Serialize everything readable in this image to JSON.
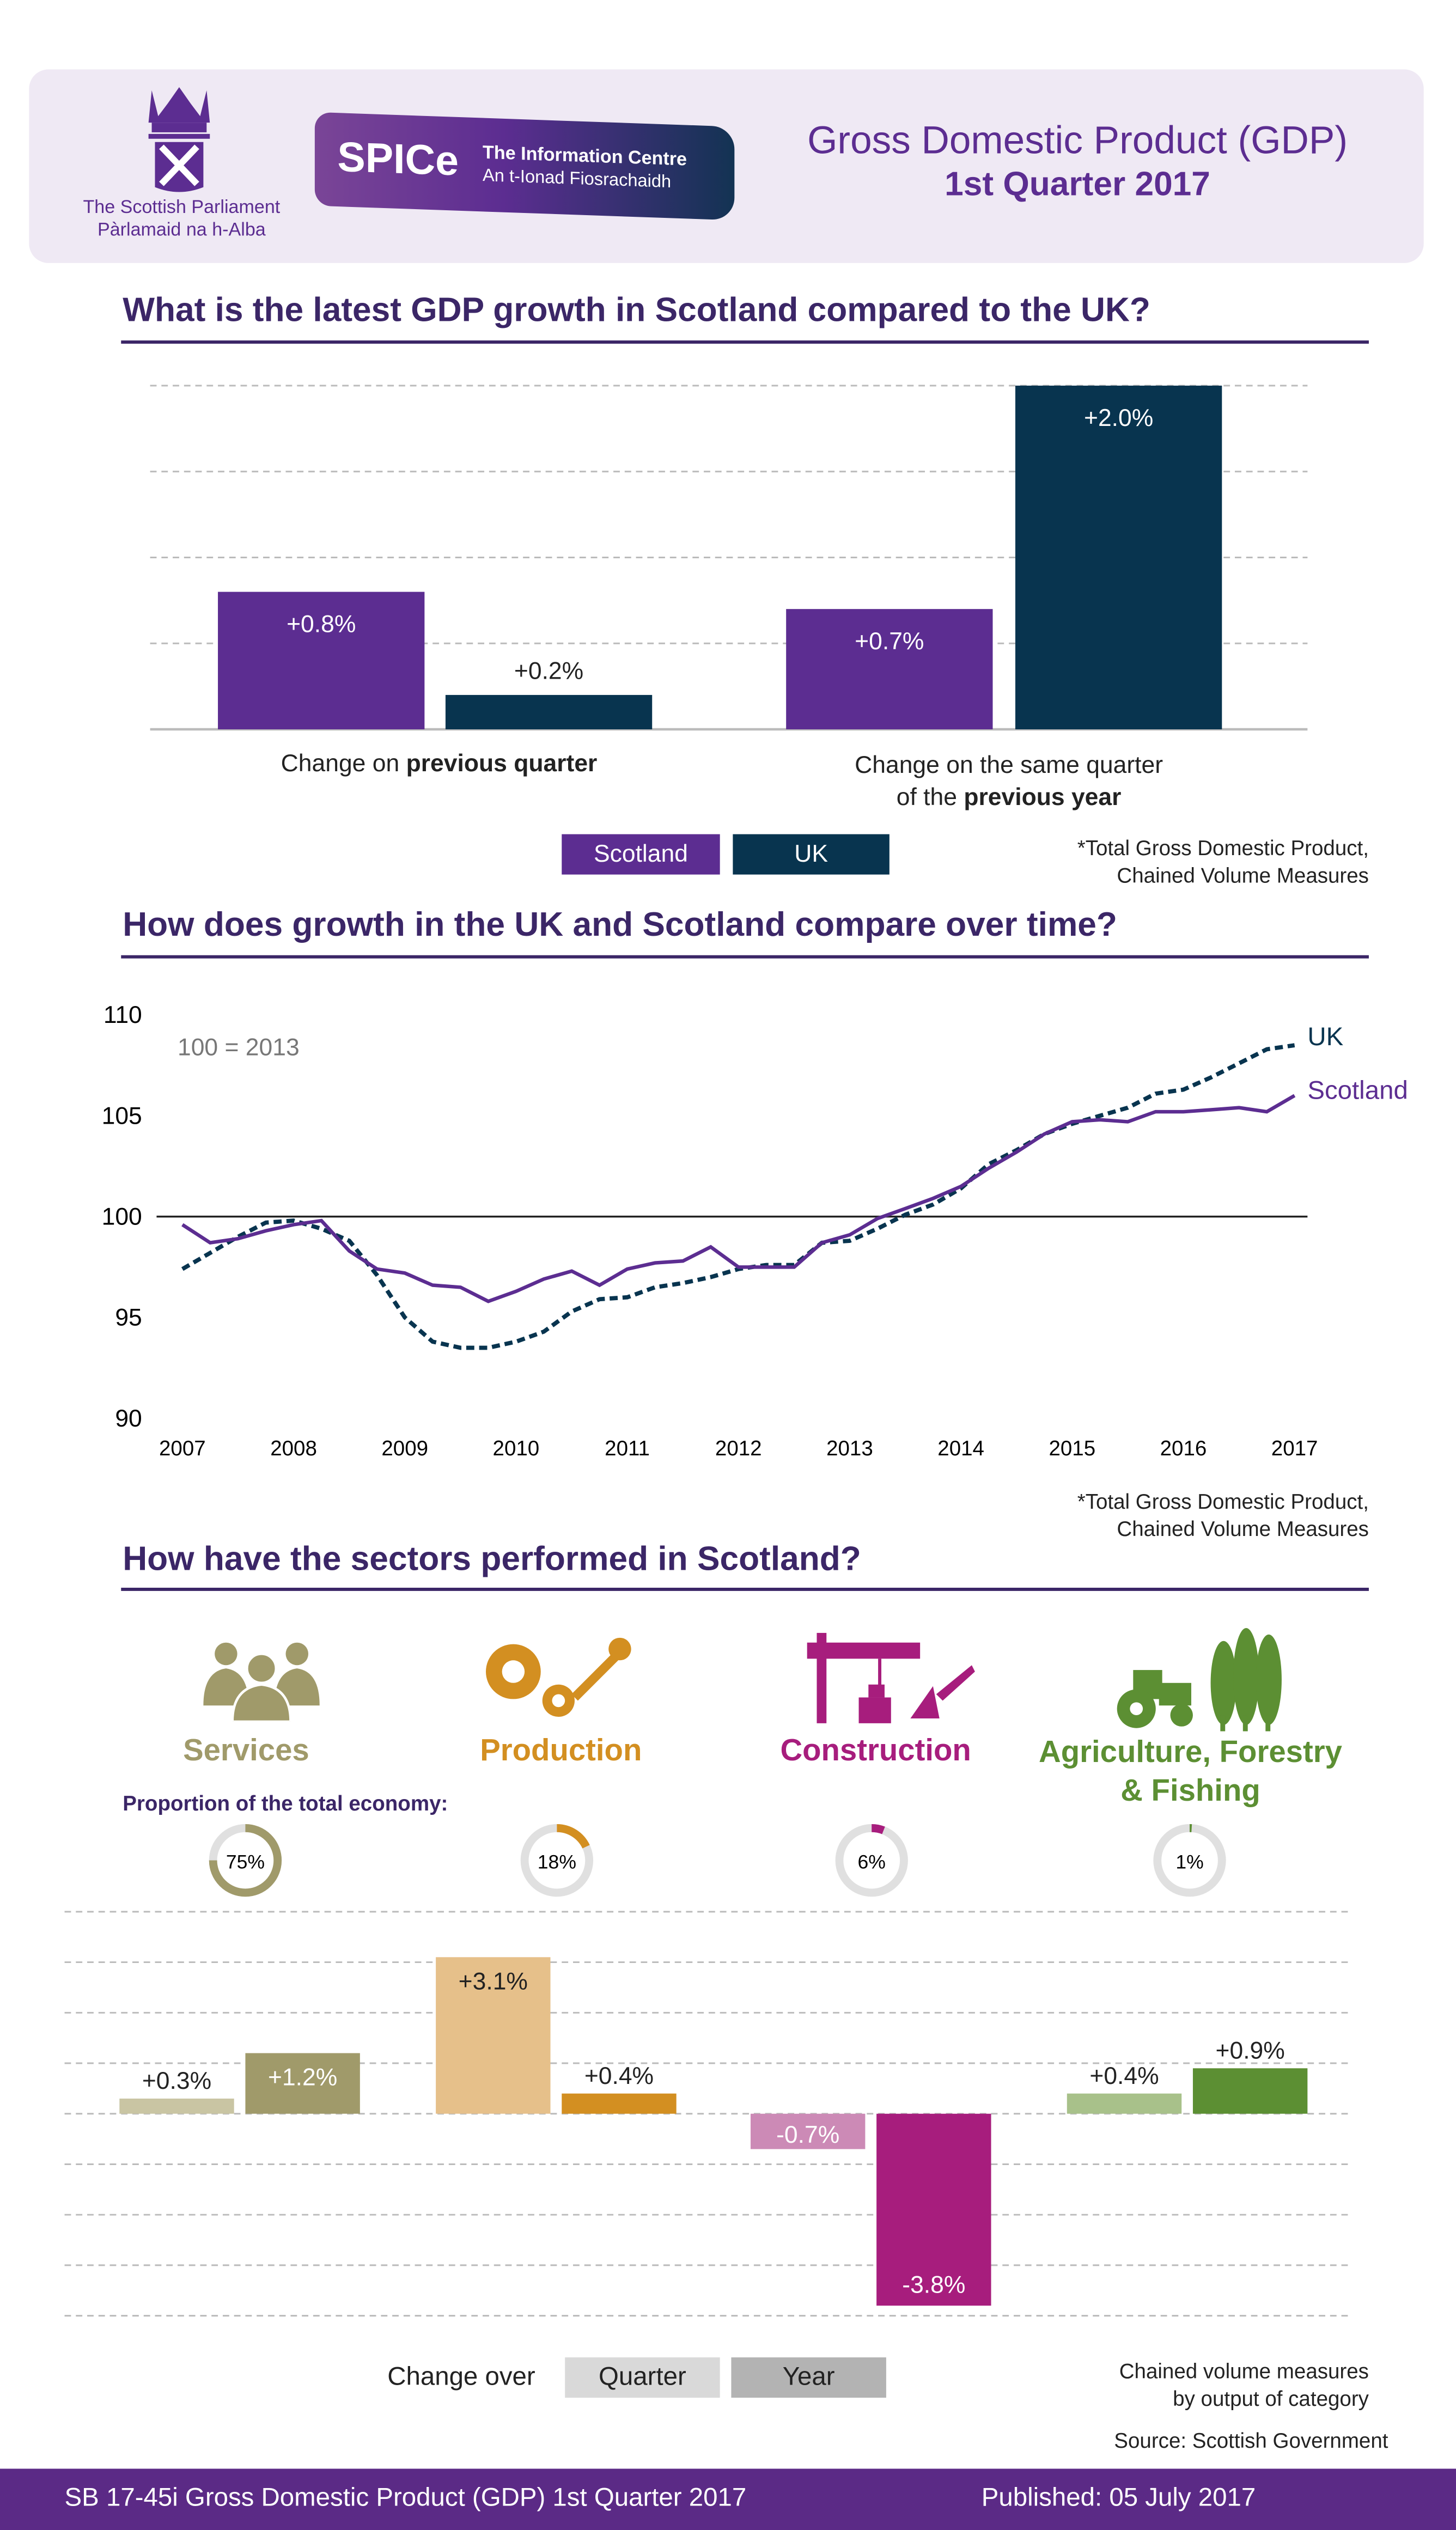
{
  "header": {
    "parliament_name_en": "The Scottish Parliament",
    "parliament_name_gd": "Pàrlamaid na h-Alba",
    "spice_logo": "SPICe",
    "spice_line1": "The Information Centre",
    "spice_line2": "An t-Ionad Fiosrachaidh",
    "title": "Gross Domestic Product (GDP)",
    "subtitle": "1st Quarter 2017"
  },
  "colors": {
    "scotland": "#5c2d91",
    "uk": "#08344f",
    "services": "#a09a6a",
    "production": "#d38f21",
    "construction": "#a71d7d",
    "agriculture": "#5c8f33",
    "brand": "#5b2a86"
  },
  "section1": {
    "title": "What is the latest GDP growth in Scotland compared to the UK?",
    "group1_label_plain": "Change on ",
    "group1_label_bold": "previous quarter",
    "group2_label_line1": "Change on the same quarter",
    "group2_label_plain": "of the ",
    "group2_label_bold": "previous year",
    "legend_scotland": "Scotland",
    "legend_uk": "UK",
    "note_line1": "*Total Gross Domestic Product,",
    "note_line2": "Chained Volume Measures"
  },
  "section2": {
    "title": "How does growth in the UK and Scotland compare over time?",
    "base_label": "100 = 2013",
    "note_line1": "*Total Gross Domestic Product,",
    "note_line2": "Chained Volume Measures"
  },
  "section3": {
    "title": "How have the sectors performed in Scotland?",
    "proportion_label": "Proportion of the total economy:",
    "sectors": [
      {
        "name": "Services",
        "icon": "people-icon",
        "share": "75%",
        "share_value": 75
      },
      {
        "name": "Production",
        "icon": "gears-wrench-icon",
        "share": "18%",
        "share_value": 18
      },
      {
        "name": "Construction",
        "icon": "crane-icon",
        "share": "6%",
        "share_value": 6
      },
      {
        "name": "Agriculture, Forestry",
        "name_line2": "& Fishing",
        "icon": "tractor-trees-icon",
        "share": "1%",
        "share_value": 1
      }
    ],
    "legend_prefix": "Change over",
    "legend_quarter": "Quarter",
    "legend_year": "Year",
    "note_line1": "Chained volume measures",
    "note_line2": "by output of category",
    "source": "Source: Scottish Government"
  },
  "footer": {
    "left": "SB 17-45i Gross Domestic Product (GDP) 1st Quarter 2017",
    "right": "Published: 05 July 2017"
  },
  "chart_data": [
    {
      "type": "bar",
      "categories": [
        "Change on previous quarter",
        "Change on the same quarter of the previous year"
      ],
      "series": [
        {
          "name": "Scotland",
          "values": [
            0.8,
            0.7
          ],
          "labels": [
            "+0.8%",
            "+0.7%"
          ]
        },
        {
          "name": "UK",
          "values": [
            0.2,
            2.0
          ],
          "labels": [
            "+0.2%",
            "+2.0%"
          ]
        }
      ],
      "ylim": [
        0,
        2.0
      ],
      "grid": true
    },
    {
      "type": "line",
      "x_ticks": [
        "2007",
        "2008",
        "2009",
        "2010",
        "2011",
        "2012",
        "2013",
        "2014",
        "2015",
        "2016",
        "2017"
      ],
      "y_ticks": [
        "90",
        "95",
        "100",
        "105",
        "110"
      ],
      "ylim": [
        90,
        110
      ],
      "xlim": [
        2007,
        2017
      ],
      "reference_line": 100,
      "series": [
        {
          "name": "UK",
          "style": "dashed",
          "x_start": 2007,
          "frequency": "quarterly",
          "values": [
            97.4,
            98.2,
            99.0,
            99.7,
            99.8,
            99.4,
            98.8,
            97.1,
            95.0,
            93.8,
            93.5,
            93.5,
            93.8,
            94.3,
            95.3,
            95.9,
            96.0,
            96.5,
            96.7,
            97.0,
            97.4,
            97.6,
            97.6,
            98.7,
            98.8,
            99.4,
            100.1,
            100.6,
            101.4,
            102.6,
            103.3,
            104.1,
            104.6,
            105.0,
            105.4,
            106.1,
            106.3,
            106.9,
            107.6,
            108.3,
            108.5
          ]
        },
        {
          "name": "Scotland",
          "style": "solid",
          "x_start": 2007,
          "frequency": "quarterly",
          "values": [
            99.6,
            98.7,
            98.9,
            99.3,
            99.6,
            99.8,
            98.3,
            97.4,
            97.2,
            96.6,
            96.5,
            95.8,
            96.3,
            96.9,
            97.3,
            96.6,
            97.4,
            97.7,
            97.8,
            98.5,
            97.5,
            97.5,
            97.5,
            98.7,
            99.1,
            99.9,
            100.4,
            100.9,
            101.5,
            102.4,
            103.2,
            104.1,
            104.7,
            104.8,
            104.7,
            105.2,
            105.2,
            105.3,
            105.4,
            105.2,
            106.0
          ]
        }
      ]
    },
    {
      "type": "bar",
      "categories": [
        "Services",
        "Production",
        "Construction",
        "Agriculture, Forestry & Fishing"
      ],
      "series": [
        {
          "name": "Quarter",
          "values": [
            0.3,
            3.1,
            -0.7,
            0.4
          ],
          "labels": [
            "+0.3%",
            "+3.1%",
            "-0.7%",
            "+0.4%"
          ]
        },
        {
          "name": "Year",
          "values": [
            1.2,
            0.4,
            -3.8,
            0.9
          ],
          "labels": [
            "+1.2%",
            "+0.4%",
            "-3.8%",
            "+0.9%"
          ]
        }
      ],
      "ylim": [
        -4,
        4
      ],
      "grid": true
    }
  ]
}
